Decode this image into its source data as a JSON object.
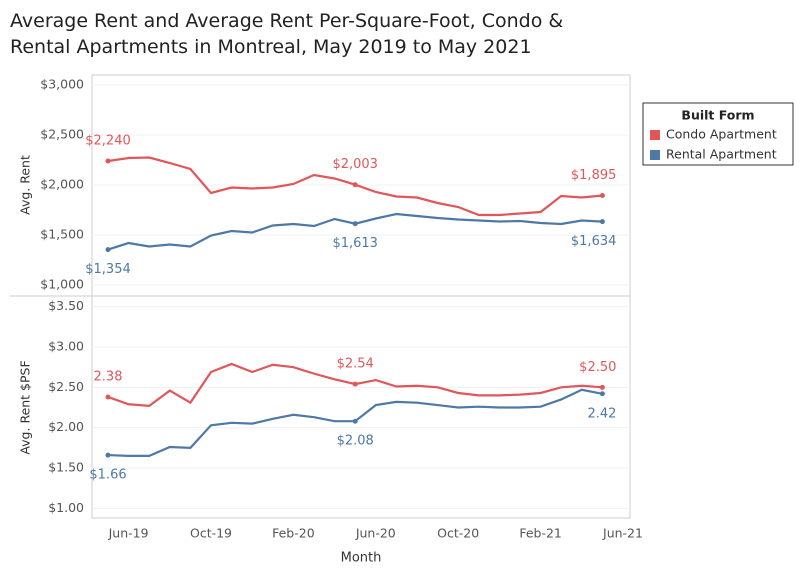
{
  "chart_data": {
    "type": "line",
    "title": "Average Rent and Average Rent Per-Square-Foot, Condo & Rental Apartments in Montreal, May 2019 to May 2021",
    "x_label": "Month",
    "legend_title": "Built Form",
    "legend_position": "right",
    "categories": [
      null,
      "Jun-19",
      null,
      null,
      null,
      "Oct-19",
      null,
      null,
      null,
      "Feb-20",
      null,
      null,
      null,
      "Jun-20",
      null,
      null,
      null,
      "Oct-20",
      null,
      null,
      null,
      "Feb-21",
      null,
      null,
      null,
      "Jun-21"
    ],
    "grid": true,
    "panels": [
      {
        "y_label": "Avg. Rent",
        "ylim": [
          900,
          3100
        ],
        "yticks": [
          {
            "value": 1000,
            "label": "$1,000"
          },
          {
            "value": 1500,
            "label": "$1,500"
          },
          {
            "value": 2000,
            "label": "$2,000"
          },
          {
            "value": 2500,
            "label": "$2,500"
          },
          {
            "value": 3000,
            "label": "$3,000"
          }
        ],
        "series": [
          {
            "name": "Condo Apartment",
            "color": "#e15759",
            "values": [
              2240,
              2270,
              2275,
              2220,
              2160,
              1920,
              1975,
              1965,
              1975,
              2010,
              2100,
              2065,
              2003,
              1930,
              1885,
              1875,
              1820,
              1780,
              1700,
              1700,
              1715,
              1730,
              1890,
              1875,
              1895,
              null
            ],
            "value_labels": [
              "$2,240",
              null,
              null,
              null,
              null,
              null,
              null,
              null,
              null,
              null,
              null,
              null,
              "$2,003",
              null,
              null,
              null,
              null,
              null,
              null,
              null,
              null,
              null,
              null,
              null,
              "$1,895",
              null
            ]
          },
          {
            "name": "Rental Apartment",
            "color": "#4e79a7",
            "values": [
              1354,
              1420,
              1385,
              1405,
              1385,
              1495,
              1540,
              1525,
              1595,
              1610,
              1590,
              1660,
              1613,
              1665,
              1710,
              1690,
              1670,
              1655,
              1645,
              1635,
              1640,
              1620,
              1610,
              1645,
              1634,
              null
            ],
            "value_labels": [
              "$1,354",
              null,
              null,
              null,
              null,
              null,
              null,
              null,
              null,
              null,
              null,
              null,
              "$1,613",
              null,
              null,
              null,
              null,
              null,
              null,
              null,
              null,
              null,
              null,
              null,
              "$1,634",
              null
            ]
          }
        ]
      },
      {
        "y_label": "Avg. Rent $PSF",
        "ylim": [
          0.88,
          3.62
        ],
        "yticks": [
          {
            "value": 1.0,
            "label": "$1.00"
          },
          {
            "value": 1.5,
            "label": "$1.50"
          },
          {
            "value": 2.0,
            "label": "$2.00"
          },
          {
            "value": 2.5,
            "label": "$2.50"
          },
          {
            "value": 3.0,
            "label": "$3.00"
          },
          {
            "value": 3.5,
            "label": "$3.50"
          }
        ],
        "series": [
          {
            "name": "Condo Apartment",
            "color": "#e15759",
            "values": [
              2.38,
              2.29,
              2.27,
              2.46,
              2.31,
              2.69,
              2.79,
              2.69,
              2.78,
              2.75,
              2.67,
              2.6,
              2.54,
              2.59,
              2.51,
              2.52,
              2.5,
              2.43,
              2.4,
              2.4,
              2.41,
              2.43,
              2.5,
              2.52,
              2.5,
              null
            ],
            "value_labels": [
              "2.38",
              null,
              null,
              null,
              null,
              null,
              null,
              null,
              null,
              null,
              null,
              null,
              "$2.54",
              null,
              null,
              null,
              null,
              null,
              null,
              null,
              null,
              null,
              null,
              null,
              "$2.50",
              null
            ]
          },
          {
            "name": "Rental Apartment",
            "color": "#4e79a7",
            "values": [
              1.66,
              1.65,
              1.65,
              1.76,
              1.75,
              2.03,
              2.06,
              2.05,
              2.11,
              2.16,
              2.13,
              2.08,
              2.08,
              2.28,
              2.32,
              2.31,
              2.28,
              2.25,
              2.26,
              2.25,
              2.25,
              2.26,
              2.35,
              2.47,
              2.42,
              null
            ],
            "value_labels": [
              "$1.66",
              null,
              null,
              null,
              null,
              null,
              null,
              null,
              null,
              null,
              null,
              null,
              "$2.08",
              null,
              null,
              null,
              null,
              null,
              null,
              null,
              null,
              null,
              null,
              null,
              "2.42",
              null
            ]
          }
        ]
      }
    ]
  }
}
